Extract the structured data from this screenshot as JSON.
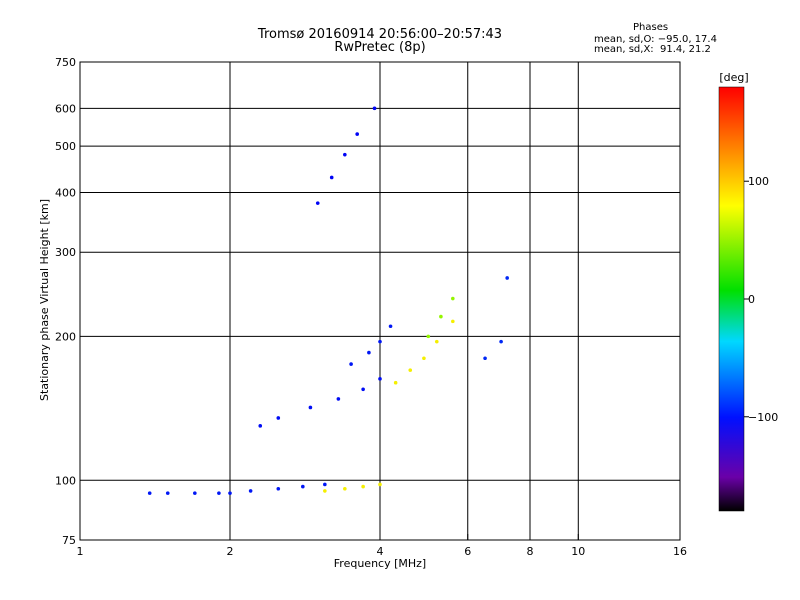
{
  "chart_data": {
    "type": "scatter",
    "title": "Tromsø 20160914 20:56:00–20:57:43",
    "subtitle": "RwPretec (8p)",
    "xlabel": "Frequency [MHz]",
    "ylabel": "Stationary phase Virtual Height [km]",
    "x_scale": "log",
    "y_scale": "log",
    "xlim": [
      1,
      16
    ],
    "ylim": [
      75,
      750
    ],
    "grid": true,
    "x_ticks": [
      {
        "value": 1,
        "label": "1"
      },
      {
        "value": 2,
        "label": "2"
      },
      {
        "value": 4,
        "label": "4"
      },
      {
        "value": 6,
        "label": "6"
      },
      {
        "value": 8,
        "label": "8"
      },
      {
        "value": 10,
        "label": "10"
      },
      {
        "value": 16,
        "label": "16"
      }
    ],
    "y_ticks": [
      {
        "value": 75,
        "label": "75"
      },
      {
        "value": 100,
        "label": "100"
      },
      {
        "value": 200,
        "label": "200"
      },
      {
        "value": 300,
        "label": "300"
      },
      {
        "value": 400,
        "label": "400"
      },
      {
        "value": 500,
        "label": "500"
      },
      {
        "value": 600,
        "label": "600"
      },
      {
        "value": 750,
        "label": "750"
      }
    ],
    "stats": {
      "heading": "Phases",
      "line1": "mean, sd,O: −95.0, 17.4",
      "line2": "mean, sd,X:  91.4, 21.2"
    },
    "colorbar": {
      "unit": "[deg]",
      "range": [
        -180,
        180
      ],
      "ticks": [
        {
          "value": 100,
          "label": "100"
        },
        {
          "value": 0,
          "label": "0"
        },
        {
          "value": -100,
          "label": "−100"
        }
      ]
    },
    "series": [
      {
        "x": [
          1.38,
          1.5,
          1.7,
          1.9,
          2.0,
          2.2,
          2.5,
          2.8,
          3.1
        ],
        "y": [
          94,
          94,
          94,
          94,
          94,
          95,
          96,
          97,
          98
        ],
        "phase": -100
      },
      {
        "x": [
          3.1,
          3.4,
          3.7,
          4.0
        ],
        "y": [
          95,
          96,
          97,
          98
        ],
        "phase": 110
      },
      {
        "x": [
          2.3,
          2.5,
          2.9,
          3.3,
          3.7,
          4.0
        ],
        "y": [
          130,
          135,
          142,
          148,
          155,
          163
        ],
        "phase": -105
      },
      {
        "x": [
          3.5,
          3.8,
          4.0,
          4.2
        ],
        "y": [
          175,
          185,
          195,
          210
        ],
        "phase": -100
      },
      {
        "x": [
          4.3,
          4.6,
          4.9,
          5.2,
          5.6
        ],
        "y": [
          160,
          170,
          180,
          195,
          215
        ],
        "phase": 110
      },
      {
        "x": [
          5.0,
          5.3,
          5.6
        ],
        "y": [
          200,
          220,
          240
        ],
        "phase": 80
      },
      {
        "x": [
          3.0,
          3.2,
          3.4,
          3.6,
          3.9
        ],
        "y": [
          380,
          430,
          480,
          530,
          600
        ],
        "phase": -110
      },
      {
        "x": [
          6.5,
          7.0,
          7.2
        ],
        "y": [
          180,
          195,
          265
        ],
        "phase": -95
      }
    ]
  }
}
